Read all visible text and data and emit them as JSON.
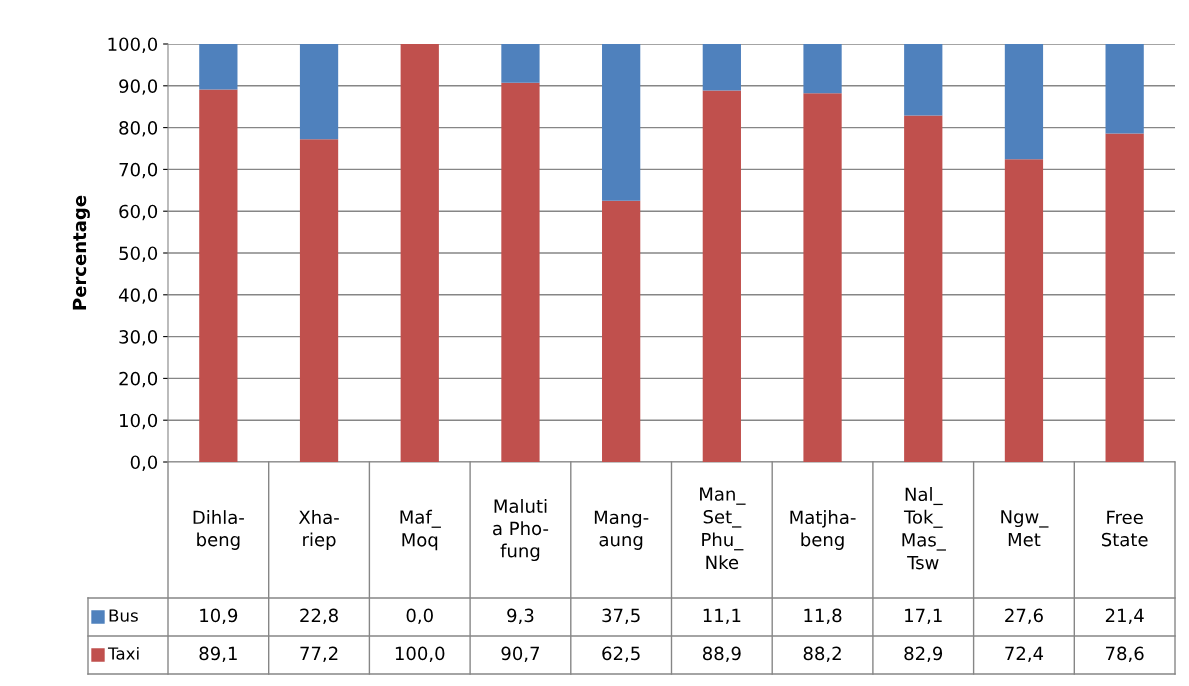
{
  "chart_data": {
    "type": "bar",
    "stacked": true,
    "ylabel": "Percentage",
    "categories": [
      "Dihla-\nbeng",
      "Xha-\nriep",
      "Maf_\nMoq",
      "Maluti\na Pho-\nfung",
      "Mang-\naung",
      "Man_\nSet_\nPhu_\nNke",
      "Matjha-\nbeng",
      "Nal_\nTok_\nMas_\nTsw",
      "Ngw_\nMet",
      "Free\nState"
    ],
    "series": [
      {
        "name": "Taxi",
        "color": "#c0504d",
        "values": [
          89.1,
          77.2,
          100.0,
          90.7,
          62.5,
          88.9,
          88.2,
          82.9,
          72.4,
          78.6
        ],
        "value_labels": [
          "89,1",
          "77,2",
          "100,0",
          "90,7",
          "62,5",
          "88,9",
          "88,2",
          "82,9",
          "72,4",
          "78,6"
        ]
      },
      {
        "name": "Bus",
        "color": "#4f81bd",
        "values": [
          10.9,
          22.8,
          0.0,
          9.3,
          37.5,
          11.1,
          11.8,
          17.1,
          27.6,
          21.4
        ],
        "value_labels": [
          "10,9",
          "22,8",
          "0,0",
          "9,3",
          "37,5",
          "11,1",
          "11,8",
          "17,1",
          "27,6",
          "21,4"
        ]
      }
    ],
    "ylim": [
      0,
      100
    ],
    "yticks": [
      {
        "value": 0,
        "label": "0,0"
      },
      {
        "value": 10,
        "label": "10,0"
      },
      {
        "value": 20,
        "label": "20,0"
      },
      {
        "value": 30,
        "label": "30,0"
      },
      {
        "value": 40,
        "label": "40,0"
      },
      {
        "value": 50,
        "label": "50,0"
      },
      {
        "value": 60,
        "label": "60,0"
      },
      {
        "value": 70,
        "label": "70,0"
      },
      {
        "value": 80,
        "label": "80,0"
      },
      {
        "value": 90,
        "label": "90,0"
      },
      {
        "value": 100,
        "label": "100,0"
      }
    ],
    "grid": "y",
    "legend": "bottom left"
  }
}
